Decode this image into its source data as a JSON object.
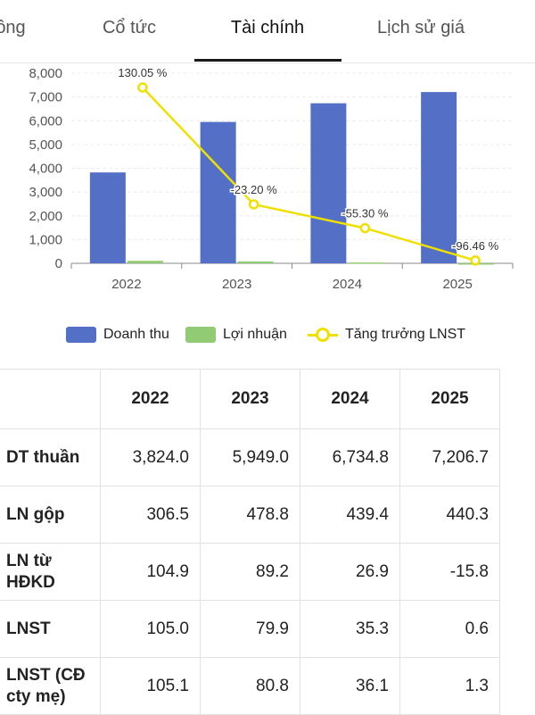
{
  "tabs": [
    "ông",
    "Cổ tức",
    "Tài chính",
    "Lịch sử giá"
  ],
  "chart_data": {
    "type": "bar",
    "categories": [
      "2022",
      "2023",
      "2024",
      "2025"
    ],
    "y_ticks": [
      "0",
      "1,000",
      "2,000",
      "3,000",
      "4,000",
      "5,000",
      "6,000",
      "7,000",
      "8,000"
    ],
    "ylim": [
      0,
      8000
    ],
    "series": [
      {
        "name": "Doanh thu",
        "type": "bar",
        "color": "#5470c6",
        "values": [
          3824.0,
          5949.0,
          6734.8,
          7206.7
        ]
      },
      {
        "name": "Lợi nhuận",
        "type": "bar",
        "color": "#91cc75",
        "values": [
          105.0,
          79.9,
          35.3,
          0.6
        ]
      },
      {
        "name": "Tăng trưởng LNST",
        "type": "line",
        "color": "#f0e000",
        "values": [
          7400,
          2480,
          1480,
          120
        ],
        "labels": [
          "130.05 %",
          "-23.20 %",
          "-55.30 %",
          "-96.46 %"
        ]
      }
    ],
    "grid": true,
    "legend_position": "bottom"
  },
  "legend": [
    "Doanh thu",
    "Lợi nhuận",
    "Tăng trưởng LNST"
  ],
  "table": {
    "headers": [
      "",
      "2022",
      "2023",
      "2024",
      "2025"
    ],
    "rows": [
      {
        "label": "DT thuần",
        "values": [
          "3,824.0",
          "5,949.0",
          "6,734.8",
          "7,206.7"
        ]
      },
      {
        "label": "LN gộp",
        "values": [
          "306.5",
          "478.8",
          "439.4",
          "440.3"
        ]
      },
      {
        "label": "LN từ HĐKD",
        "values": [
          "104.9",
          "89.2",
          "26.9",
          "-15.8"
        ]
      },
      {
        "label": "LNST",
        "values": [
          "105.0",
          "79.9",
          "35.3",
          "0.6"
        ]
      },
      {
        "label": "LNST (CĐ cty mẹ)",
        "values": [
          "105.1",
          "80.8",
          "36.1",
          "1.3"
        ]
      }
    ]
  }
}
